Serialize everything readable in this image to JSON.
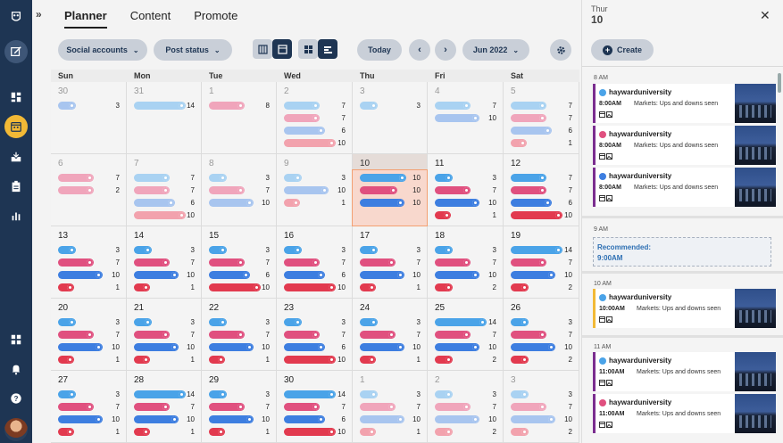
{
  "nav": {
    "brand_icon": "owl-logo-icon",
    "items": [
      {
        "name": "compose-icon",
        "active": true
      },
      {
        "name": "dashboard-icon"
      },
      {
        "name": "planner-icon",
        "highlight": true
      },
      {
        "name": "inbox-icon"
      },
      {
        "name": "clipboard-icon"
      },
      {
        "name": "analytics-icon"
      },
      {
        "name": "apps-icon"
      },
      {
        "name": "notifications-icon"
      },
      {
        "name": "help-icon"
      }
    ]
  },
  "header": {
    "tabs": [
      {
        "label": "Planner",
        "active": true
      },
      {
        "label": "Content"
      },
      {
        "label": "Promote"
      }
    ]
  },
  "toolbar": {
    "social_accounts": "Social accounts",
    "post_status": "Post status",
    "today": "Today",
    "month": "Jun 2022"
  },
  "calendar": {
    "weekdays": [
      "Sun",
      "Mon",
      "Tue",
      "Wed",
      "Thu",
      "Fri",
      "Sat"
    ],
    "today_index": 11,
    "weeks": [
      [
        {
          "date": "30",
          "muted": true,
          "bars": [
            [
              "fb",
              3
            ]
          ]
        },
        {
          "date": "31",
          "muted": true,
          "bars": [
            [
              "tw",
              14
            ]
          ]
        },
        {
          "date": "1",
          "muted": true,
          "bars": [
            [
              "ig",
              8
            ]
          ]
        },
        {
          "date": "2",
          "muted": true,
          "bars": [
            [
              "tw",
              7
            ],
            [
              "ig",
              7
            ],
            [
              "fb",
              6
            ],
            [
              "pn",
              10
            ]
          ]
        },
        {
          "date": "3",
          "muted": true,
          "bars": [
            [
              "tw",
              3
            ]
          ]
        },
        {
          "date": "4",
          "muted": true,
          "bars": [
            [
              "tw",
              7
            ],
            [
              "fb",
              10
            ]
          ]
        },
        {
          "date": "5",
          "muted": true,
          "bars": [
            [
              "tw",
              7
            ],
            [
              "ig",
              7
            ],
            [
              "fb",
              6
            ],
            [
              "pn",
              1
            ]
          ]
        }
      ],
      [
        {
          "date": "6",
          "muted": true,
          "bars": [
            [
              "ig",
              7
            ],
            [
              "ig",
              2
            ]
          ]
        },
        {
          "date": "7",
          "muted": true,
          "bars": [
            [
              "tw",
              7
            ],
            [
              "ig",
              7
            ],
            [
              "fb",
              6
            ],
            [
              "pn",
              10
            ]
          ]
        },
        {
          "date": "8",
          "muted": true,
          "bars": [
            [
              "tw",
              3
            ],
            [
              "ig",
              7
            ],
            [
              "fb",
              10
            ]
          ]
        },
        {
          "date": "9",
          "muted": true,
          "bars": [
            [
              "tw",
              3
            ],
            [
              "fb",
              10
            ],
            [
              "pn",
              1
            ]
          ]
        },
        {
          "date": "10",
          "bars": [
            [
              "tw",
              10
            ],
            [
              "ig",
              10
            ],
            [
              "fb",
              10
            ]
          ]
        },
        {
          "date": "11",
          "bars": [
            [
              "tw",
              3
            ],
            [
              "ig",
              7
            ],
            [
              "fb",
              10
            ],
            [
              "pn",
              1
            ]
          ]
        },
        {
          "date": "12",
          "bars": [
            [
              "tw",
              7
            ],
            [
              "ig",
              7
            ],
            [
              "fb",
              6
            ],
            [
              "pn",
              10
            ]
          ]
        }
      ],
      [
        {
          "date": "13",
          "bars": [
            [
              "tw",
              3
            ],
            [
              "ig",
              7
            ],
            [
              "fb",
              10
            ],
            [
              "pn",
              1
            ]
          ]
        },
        {
          "date": "14",
          "bars": [
            [
              "tw",
              3
            ],
            [
              "ig",
              7
            ],
            [
              "fb",
              10
            ],
            [
              "pn",
              1
            ]
          ]
        },
        {
          "date": "15",
          "bars": [
            [
              "tw",
              3
            ],
            [
              "ig",
              7
            ],
            [
              "fb",
              6
            ],
            [
              "pn",
              10
            ]
          ]
        },
        {
          "date": "16",
          "bars": [
            [
              "tw",
              3
            ],
            [
              "ig",
              7
            ],
            [
              "fb",
              6
            ],
            [
              "pn",
              10
            ]
          ]
        },
        {
          "date": "17",
          "bars": [
            [
              "tw",
              3
            ],
            [
              "ig",
              7
            ],
            [
              "fb",
              10
            ],
            [
              "pn",
              1
            ]
          ]
        },
        {
          "date": "18",
          "bars": [
            [
              "tw",
              3
            ],
            [
              "ig",
              7
            ],
            [
              "fb",
              10
            ],
            [
              "pn",
              2
            ]
          ]
        },
        {
          "date": "19",
          "bars": [
            [
              "tw",
              14
            ],
            [
              "ig",
              7
            ],
            [
              "fb",
              10
            ],
            [
              "pn",
              2
            ]
          ]
        }
      ],
      [
        {
          "date": "20",
          "bars": [
            [
              "tw",
              3
            ],
            [
              "ig",
              7
            ],
            [
              "fb",
              10
            ],
            [
              "pn",
              1
            ]
          ]
        },
        {
          "date": "21",
          "bars": [
            [
              "tw",
              3
            ],
            [
              "ig",
              7
            ],
            [
              "fb",
              10
            ],
            [
              "pn",
              1
            ]
          ]
        },
        {
          "date": "22",
          "bars": [
            [
              "tw",
              3
            ],
            [
              "ig",
              7
            ],
            [
              "fb",
              10
            ],
            [
              "pn",
              1
            ]
          ]
        },
        {
          "date": "23",
          "bars": [
            [
              "tw",
              3
            ],
            [
              "ig",
              7
            ],
            [
              "fb",
              6
            ],
            [
              "pn",
              10
            ]
          ]
        },
        {
          "date": "24",
          "bars": [
            [
              "tw",
              3
            ],
            [
              "ig",
              7
            ],
            [
              "fb",
              10
            ],
            [
              "pn",
              1
            ]
          ]
        },
        {
          "date": "25",
          "bars": [
            [
              "tw",
              14
            ],
            [
              "ig",
              7
            ],
            [
              "fb",
              10
            ],
            [
              "pn",
              2
            ]
          ]
        },
        {
          "date": "26",
          "bars": [
            [
              "tw",
              3
            ],
            [
              "ig",
              7
            ],
            [
              "fb",
              10
            ],
            [
              "pn",
              2
            ]
          ]
        }
      ],
      [
        {
          "date": "27",
          "bars": [
            [
              "tw",
              3
            ],
            [
              "ig",
              7
            ],
            [
              "fb",
              10
            ],
            [
              "pn",
              1
            ]
          ]
        },
        {
          "date": "28",
          "bars": [
            [
              "tw",
              14
            ],
            [
              "ig",
              7
            ],
            [
              "fb",
              10
            ],
            [
              "pn",
              1
            ]
          ]
        },
        {
          "date": "29",
          "bars": [
            [
              "tw",
              3
            ],
            [
              "ig",
              7
            ],
            [
              "fb",
              10
            ],
            [
              "pn",
              1
            ]
          ]
        },
        {
          "date": "30",
          "bars": [
            [
              "tw",
              14
            ],
            [
              "ig",
              7
            ],
            [
              "fb",
              6
            ],
            [
              "pn",
              10
            ]
          ]
        },
        {
          "date": "1",
          "muted": true,
          "bars": [
            [
              "tw",
              3
            ],
            [
              "ig",
              7
            ],
            [
              "fb",
              10
            ],
            [
              "pn",
              1
            ]
          ]
        },
        {
          "date": "2",
          "muted": true,
          "bars": [
            [
              "tw",
              3
            ],
            [
              "ig",
              7
            ],
            [
              "fb",
              10
            ],
            [
              "pn",
              2
            ]
          ]
        },
        {
          "date": "3",
          "muted": true,
          "bars": [
            [
              "tw",
              3
            ],
            [
              "ig",
              7
            ],
            [
              "fb",
              10
            ],
            [
              "pn",
              2
            ]
          ]
        }
      ]
    ]
  },
  "networks": {
    "tw": {
      "label": "twitter-icon",
      "color": "#4aa3e8",
      "muted": "#a9d2f2",
      "dot": "#4aa3e8"
    },
    "ig": {
      "label": "instagram-icon",
      "color": "#e0507f",
      "muted": "#f0a5bb",
      "dot": "#e0507f"
    },
    "fb": {
      "label": "facebook-icon",
      "color": "#3d7ee0",
      "muted": "#a8c5ef",
      "dot": "#3d7ee0"
    },
    "pn": {
      "label": "pinterest-icon",
      "color": "#e23a4f",
      "muted": "#f2a2ad",
      "dot": "#e23a4f"
    }
  },
  "panel": {
    "day_name": "Thur",
    "day_num": "10",
    "create": "Create",
    "hours": [
      "8 AM",
      "9 AM",
      "10 AM",
      "11 AM"
    ],
    "recommended_label": "Recommended:",
    "recommended_time": "9:00AM",
    "posts": [
      {
        "net": "tw",
        "account": "haywarduniversity",
        "time": "8:00AM",
        "text": "Markets: Ups and downs seen",
        "accent": "#7b2d8f"
      },
      {
        "net": "ig",
        "account": "haywarduniversity",
        "time": "8:00AM",
        "text": "Markets: Ups and downs seen",
        "accent": "#7b2d8f"
      },
      {
        "net": "fb",
        "account": "haywarduniversity",
        "time": "8:00AM",
        "text": "Markets: Ups and downs seen",
        "accent": "#7b2d8f"
      },
      {
        "net": "tw",
        "account": "haywarduniversity",
        "time": "10:00AM",
        "text": "Markets: Ups and downs seen",
        "accent": "#f2b936"
      },
      {
        "net": "tw",
        "account": "haywarduniversity",
        "time": "11:00AM",
        "text": "Markets: Ups and downs seen",
        "accent": "#7b2d8f"
      },
      {
        "net": "ig",
        "account": "haywarduniversity",
        "time": "11:00AM",
        "text": "Markets: Ups and downs seen",
        "accent": "#7b2d8f"
      }
    ]
  }
}
